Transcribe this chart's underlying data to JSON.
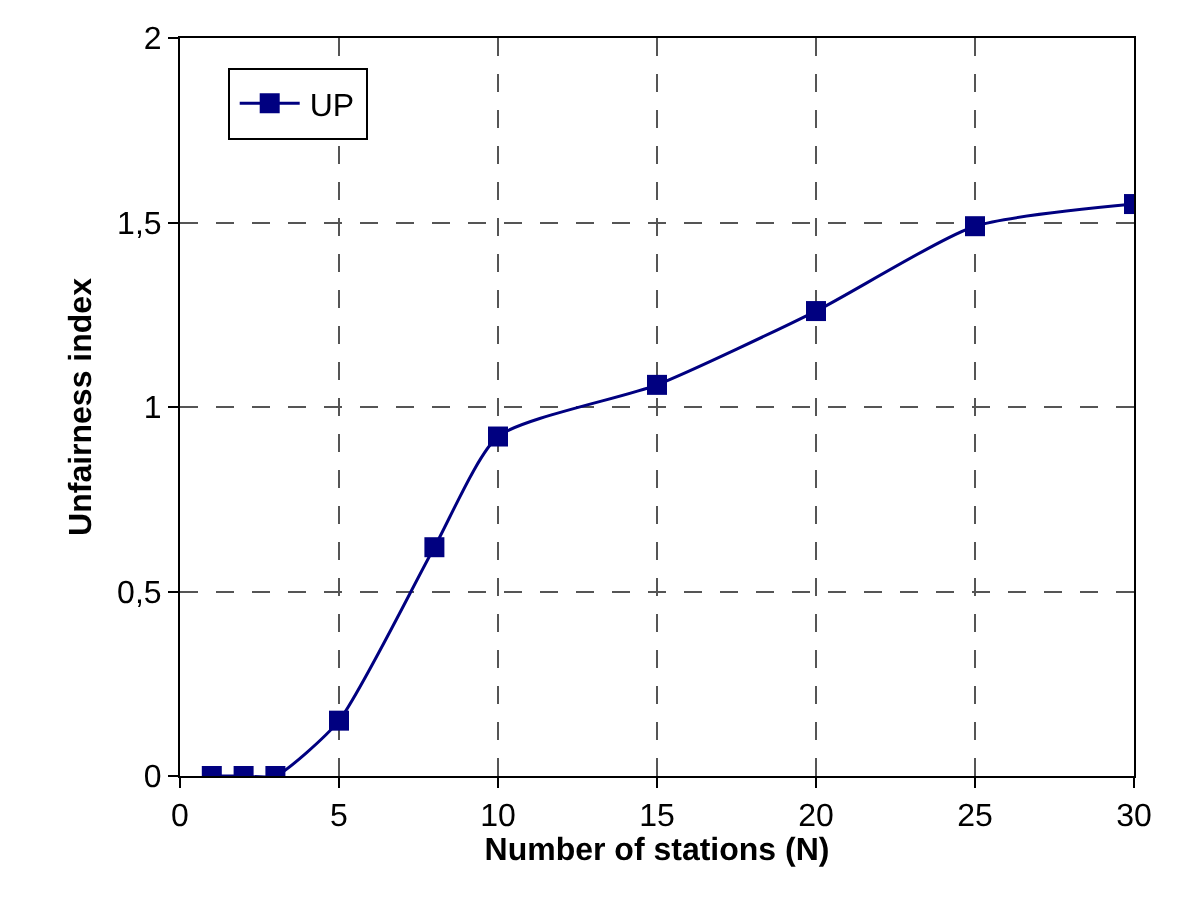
{
  "chart_data": {
    "type": "line",
    "xlabel": "Number of stations (N)",
    "ylabel": "Unfairness index",
    "x": [
      1,
      2,
      3,
      5,
      8,
      10,
      15,
      20,
      25,
      30
    ],
    "series": [
      {
        "name": "UP",
        "color": "#000080",
        "values": [
          0,
          0,
          0,
          0.15,
          0.62,
          0.92,
          1.06,
          1.26,
          1.49,
          1.55
        ]
      }
    ],
    "xlim": [
      0,
      30
    ],
    "xticks": [
      0,
      5,
      10,
      15,
      20,
      25,
      30
    ],
    "ylim": [
      0,
      2
    ],
    "yticks": [
      0,
      {
        "value": 0.5,
        "label": "0,5"
      },
      1,
      {
        "value": 1.5,
        "label": "1,5"
      },
      2
    ],
    "grid": true,
    "legend": "top left",
    "marker": "square",
    "line_style": "solid"
  }
}
